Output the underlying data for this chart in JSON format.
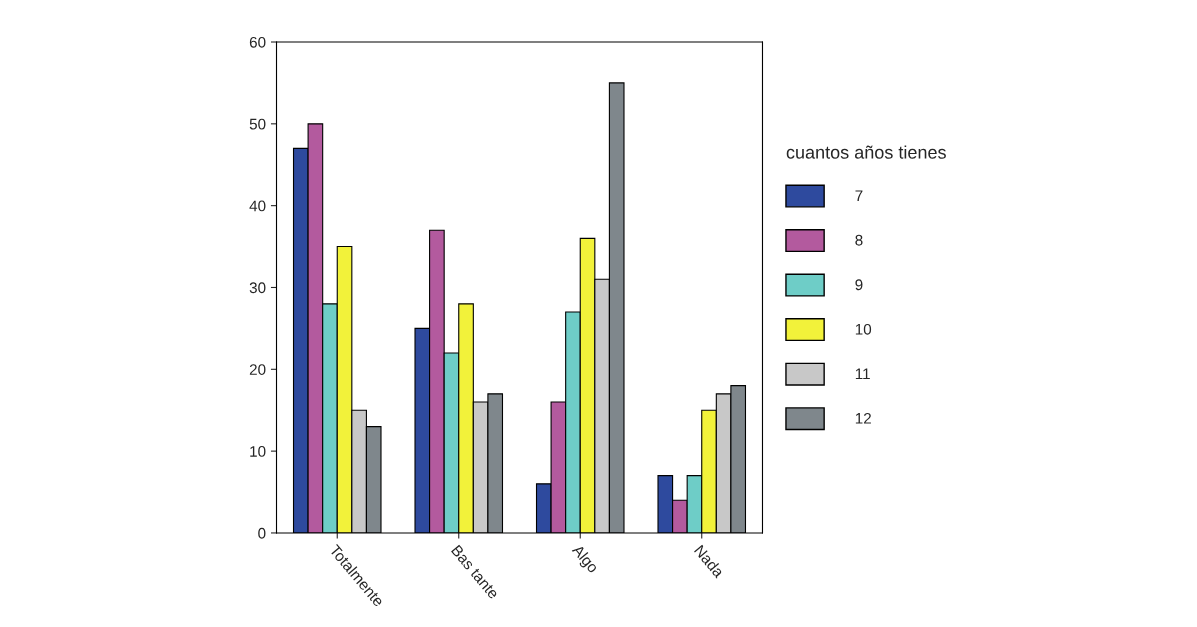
{
  "chart_data": {
    "type": "bar",
    "categories": [
      "Totalmente",
      "Bas tante",
      "Algo",
      "Nada"
    ],
    "legend_title": "cuantos años tienes",
    "series": [
      {
        "name": "7",
        "color": "#2e4a9e",
        "values": [
          47,
          25,
          6,
          7
        ]
      },
      {
        "name": "8",
        "color": "#b35a9e",
        "values": [
          50,
          37,
          16,
          4
        ]
      },
      {
        "name": "9",
        "color": "#6ecdc7",
        "values": [
          28,
          22,
          27,
          7
        ]
      },
      {
        "name": "10",
        "color": "#f2f23a",
        "values": [
          35,
          28,
          36,
          15
        ]
      },
      {
        "name": "11",
        "color": "#c8c8c8",
        "values": [
          15,
          16,
          31,
          17
        ]
      },
      {
        "name": "12",
        "color": "#7f878c",
        "values": [
          13,
          17,
          55,
          18
        ]
      }
    ],
    "ylim": [
      0,
      60
    ],
    "yticks": [
      0,
      10,
      20,
      30,
      40,
      50,
      60
    ],
    "grid": false,
    "legend": "right"
  }
}
